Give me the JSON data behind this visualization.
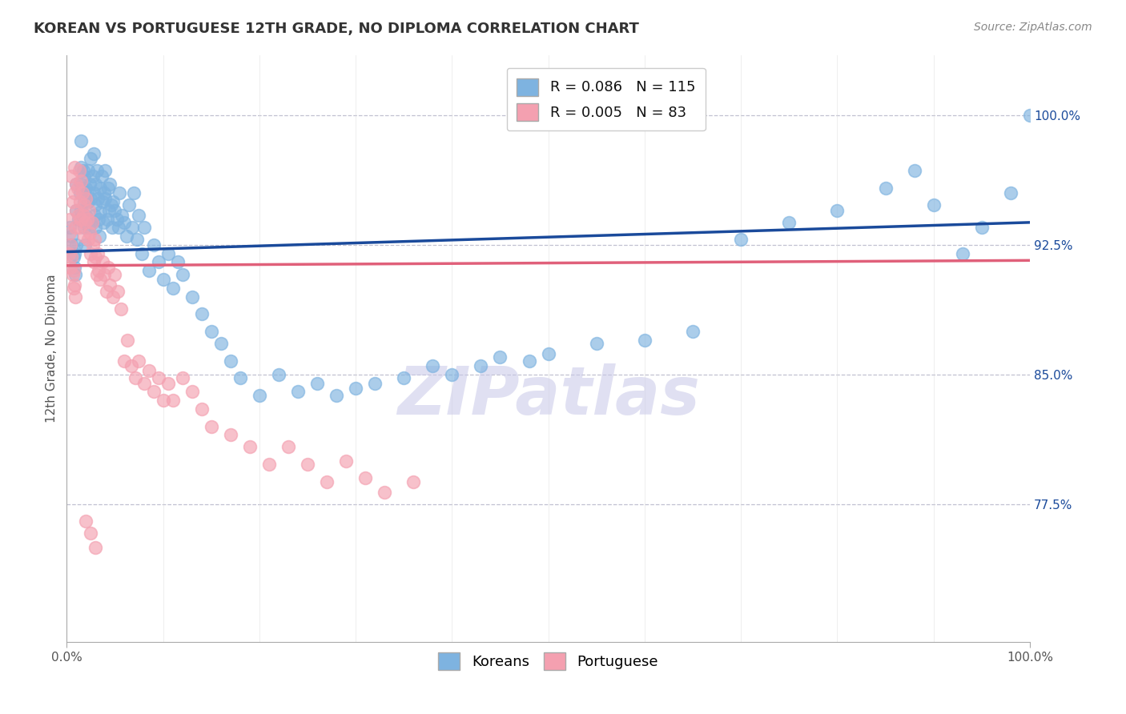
{
  "title": "KOREAN VS PORTUGUESE 12TH GRADE, NO DIPLOMA CORRELATION CHART",
  "source": "Source: ZipAtlas.com",
  "ylabel": "12th Grade, No Diploma",
  "xlim": [
    0.0,
    1.0
  ],
  "ylim": [
    0.695,
    1.035
  ],
  "yticks": [
    0.775,
    0.85,
    0.925,
    1.0
  ],
  "ytick_labels": [
    "77.5%",
    "85.0%",
    "92.5%",
    "100.0%"
  ],
  "xtick_labels": [
    "0.0%",
    "100.0%"
  ],
  "xticks": [
    0.0,
    1.0
  ],
  "korean_R": 0.086,
  "korean_N": 115,
  "portuguese_R": 0.005,
  "portuguese_N": 83,
  "korean_color": "#7EB3E0",
  "portuguese_color": "#F4A0B0",
  "korean_line_color": "#1A4A9B",
  "portuguese_line_color": "#E0607A",
  "watermark_color": "#C8C8E8",
  "background_color": "#FFFFFF",
  "legend_label_korean": "Koreans",
  "legend_label_portuguese": "Portuguese",
  "title_fontsize": 13,
  "source_fontsize": 10,
  "axis_label_fontsize": 11,
  "tick_fontsize": 11,
  "legend_fontsize": 13,
  "korean_line_y0": 0.921,
  "korean_line_y1": 0.938,
  "portuguese_line_y0": 0.913,
  "portuguese_line_y1": 0.916,
  "korean_scatter_x": [
    0.005,
    0.008,
    0.01,
    0.01,
    0.01,
    0.012,
    0.014,
    0.015,
    0.015,
    0.015,
    0.015,
    0.016,
    0.016,
    0.017,
    0.018,
    0.018,
    0.018,
    0.019,
    0.019,
    0.02,
    0.02,
    0.021,
    0.022,
    0.022,
    0.023,
    0.024,
    0.025,
    0.025,
    0.026,
    0.027,
    0.028,
    0.028,
    0.029,
    0.03,
    0.03,
    0.03,
    0.031,
    0.032,
    0.033,
    0.034,
    0.035,
    0.035,
    0.036,
    0.037,
    0.038,
    0.039,
    0.04,
    0.04,
    0.042,
    0.043,
    0.044,
    0.045,
    0.046,
    0.047,
    0.048,
    0.05,
    0.052,
    0.054,
    0.055,
    0.057,
    0.06,
    0.062,
    0.065,
    0.068,
    0.07,
    0.073,
    0.075,
    0.078,
    0.08,
    0.085,
    0.09,
    0.095,
    0.1,
    0.105,
    0.11,
    0.115,
    0.12,
    0.13,
    0.14,
    0.15,
    0.16,
    0.17,
    0.18,
    0.2,
    0.22,
    0.24,
    0.26,
    0.28,
    0.3,
    0.32,
    0.35,
    0.38,
    0.4,
    0.43,
    0.45,
    0.48,
    0.5,
    0.55,
    0.6,
    0.65,
    0.7,
    0.75,
    0.8,
    0.85,
    0.88,
    0.9,
    0.93,
    0.95,
    0.98,
    1.0,
    0.003,
    0.005,
    0.007,
    0.008,
    0.009
  ],
  "korean_scatter_y": [
    0.93,
    0.92,
    0.96,
    0.945,
    0.925,
    0.94,
    0.955,
    0.97,
    0.985,
    0.96,
    0.945,
    0.958,
    0.942,
    0.968,
    0.935,
    0.95,
    0.965,
    0.94,
    0.925,
    0.958,
    0.942,
    0.955,
    0.968,
    0.95,
    0.935,
    0.96,
    0.975,
    0.952,
    0.938,
    0.965,
    0.978,
    0.955,
    0.942,
    0.96,
    0.948,
    0.935,
    0.968,
    0.952,
    0.94,
    0.93,
    0.958,
    0.944,
    0.965,
    0.95,
    0.938,
    0.955,
    0.968,
    0.952,
    0.94,
    0.958,
    0.945,
    0.96,
    0.948,
    0.935,
    0.95,
    0.945,
    0.94,
    0.935,
    0.955,
    0.942,
    0.938,
    0.93,
    0.948,
    0.935,
    0.955,
    0.928,
    0.942,
    0.92,
    0.935,
    0.91,
    0.925,
    0.915,
    0.905,
    0.92,
    0.9,
    0.915,
    0.908,
    0.895,
    0.885,
    0.875,
    0.868,
    0.858,
    0.848,
    0.838,
    0.85,
    0.84,
    0.845,
    0.838,
    0.842,
    0.845,
    0.848,
    0.855,
    0.85,
    0.855,
    0.86,
    0.858,
    0.862,
    0.868,
    0.87,
    0.875,
    0.928,
    0.938,
    0.945,
    0.958,
    0.968,
    0.948,
    0.92,
    0.935,
    0.955,
    1.0,
    0.935,
    0.925,
    0.918,
    0.912,
    0.908
  ],
  "portuguese_scatter_x": [
    0.003,
    0.005,
    0.006,
    0.008,
    0.008,
    0.009,
    0.01,
    0.01,
    0.011,
    0.012,
    0.013,
    0.013,
    0.014,
    0.015,
    0.015,
    0.016,
    0.017,
    0.018,
    0.018,
    0.019,
    0.02,
    0.021,
    0.022,
    0.023,
    0.024,
    0.025,
    0.026,
    0.027,
    0.028,
    0.029,
    0.03,
    0.031,
    0.032,
    0.033,
    0.035,
    0.037,
    0.039,
    0.041,
    0.043,
    0.045,
    0.048,
    0.05,
    0.053,
    0.056,
    0.06,
    0.063,
    0.067,
    0.071,
    0.075,
    0.08,
    0.085,
    0.09,
    0.095,
    0.1,
    0.105,
    0.11,
    0.12,
    0.13,
    0.14,
    0.15,
    0.17,
    0.19,
    0.21,
    0.23,
    0.25,
    0.27,
    0.29,
    0.31,
    0.33,
    0.36,
    0.002,
    0.003,
    0.004,
    0.004,
    0.005,
    0.006,
    0.007,
    0.007,
    0.008,
    0.009,
    0.02,
    0.025,
    0.03
  ],
  "portuguese_scatter_y": [
    0.94,
    0.965,
    0.95,
    0.97,
    0.955,
    0.935,
    0.96,
    0.945,
    0.958,
    0.942,
    0.968,
    0.935,
    0.95,
    0.962,
    0.94,
    0.955,
    0.942,
    0.93,
    0.948,
    0.938,
    0.952,
    0.94,
    0.928,
    0.945,
    0.932,
    0.92,
    0.938,
    0.925,
    0.915,
    0.928,
    0.918,
    0.908,
    0.92,
    0.91,
    0.905,
    0.915,
    0.908,
    0.898,
    0.912,
    0.902,
    0.895,
    0.908,
    0.898,
    0.888,
    0.858,
    0.87,
    0.855,
    0.848,
    0.858,
    0.845,
    0.852,
    0.84,
    0.848,
    0.835,
    0.845,
    0.835,
    0.848,
    0.84,
    0.83,
    0.82,
    0.815,
    0.808,
    0.798,
    0.808,
    0.798,
    0.788,
    0.8,
    0.79,
    0.782,
    0.788,
    0.92,
    0.932,
    0.912,
    0.925,
    0.918,
    0.908,
    0.9,
    0.91,
    0.902,
    0.895,
    0.765,
    0.758,
    0.75
  ]
}
